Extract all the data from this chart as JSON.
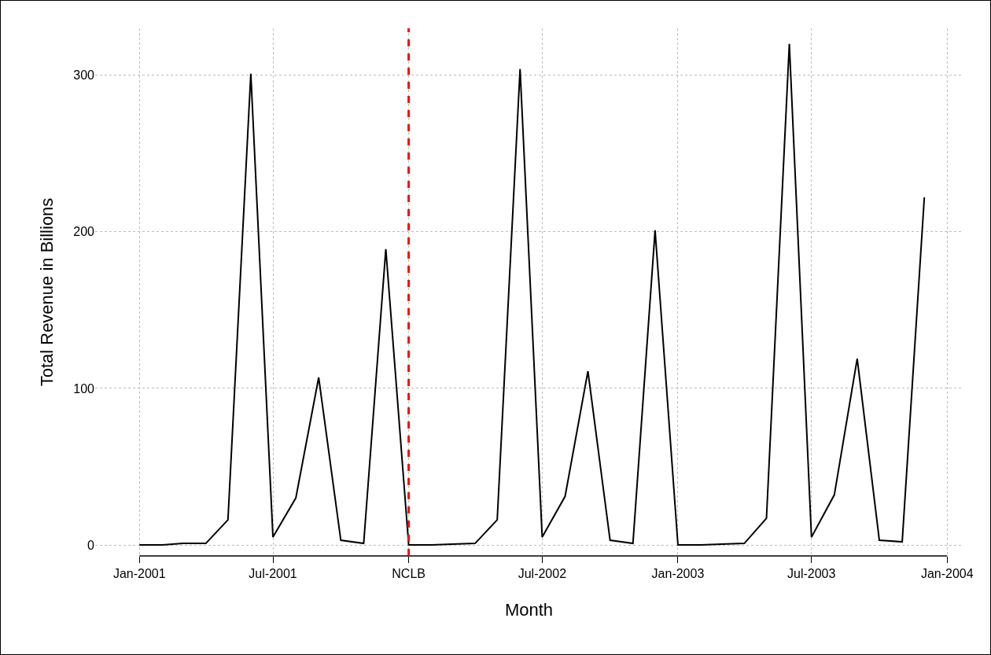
{
  "chart_data": {
    "type": "line",
    "xlabel": "Month",
    "ylabel": "Total Revenue in Billions",
    "x": [
      "2001-01",
      "2001-02",
      "2001-03",
      "2001-04",
      "2001-05",
      "2001-06",
      "2001-07",
      "2001-08",
      "2001-09",
      "2001-10",
      "2001-11",
      "2001-12",
      "2002-01",
      "2002-02",
      "2002-03",
      "2002-04",
      "2002-05",
      "2002-06",
      "2002-07",
      "2002-08",
      "2002-09",
      "2002-10",
      "2002-11",
      "2002-12",
      "2003-01",
      "2003-02",
      "2003-03",
      "2003-04",
      "2003-05",
      "2003-06",
      "2003-07",
      "2003-08",
      "2003-09",
      "2003-10",
      "2003-11",
      "2003-12"
    ],
    "series": [
      {
        "color": "#000000",
        "line_style": "solid",
        "values": [
          0,
          0,
          1,
          1,
          16,
          301,
          5,
          30,
          107,
          3,
          1,
          189,
          0,
          0,
          0.5,
          1,
          16,
          304,
          5,
          31,
          111,
          3,
          1,
          201,
          0,
          0,
          0.5,
          1,
          17,
          320,
          5,
          32,
          119,
          3,
          2,
          222
        ]
      }
    ],
    "xlim": [
      "2000-11-02",
      "2004-01-22"
    ],
    "xticks": [
      {
        "value": "2001-01-01",
        "label": "Jan-2001"
      },
      {
        "value": "2001-07-01",
        "label": "Jul-2001"
      },
      {
        "value": "2002-01-01",
        "label": "NCLB"
      },
      {
        "value": "2002-07-01",
        "label": "Jul-2002"
      },
      {
        "value": "2003-01-01",
        "label": "Jan-2003"
      },
      {
        "value": "2003-07-01",
        "label": "Jul-2003"
      },
      {
        "value": "2004-01-01",
        "label": "Jan-2004"
      }
    ],
    "ylim": [
      -7,
      330
    ],
    "yticks": [
      0,
      100,
      200,
      300
    ],
    "ref_lines": [
      {
        "axis": "x",
        "value": "2002-01-01",
        "color": "#ff0000",
        "line_style": "dashed"
      }
    ],
    "grid": true,
    "marker": "none"
  }
}
